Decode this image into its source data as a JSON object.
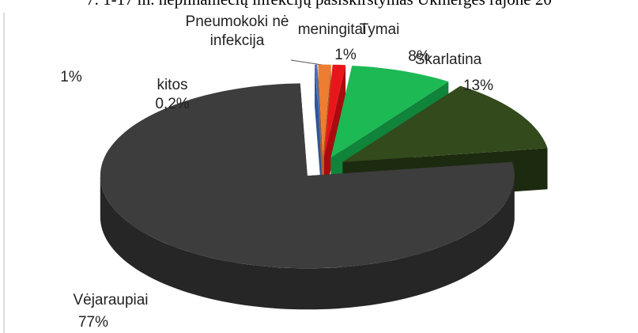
{
  "chart_data": {
    "type": "pie",
    "title": "7. 1-17 m. nepilnamečių infekcijų pasiskirstymas Ukmergės rajone 20",
    "categories": [
      "kitos",
      "Pneumokoki nė infekcija",
      "meningitai",
      "Tymai",
      "Skarlatina",
      "Vėjaraupiai"
    ],
    "values": [
      0.2,
      1,
      1,
      8,
      13,
      77
    ],
    "value_labels": [
      "0,2%",
      "1%",
      "1%",
      "8%",
      "13%",
      "77%"
    ],
    "colors": [
      "#4472c4",
      "#ed7d31",
      "#e8161b",
      "#1db954",
      "#324a1c",
      "#3d3d3d"
    ],
    "side_colors": [
      "#2f5597",
      "#b55a1c",
      "#a80c0f",
      "#10843a",
      "#1c2a0f",
      "#262626"
    ]
  }
}
